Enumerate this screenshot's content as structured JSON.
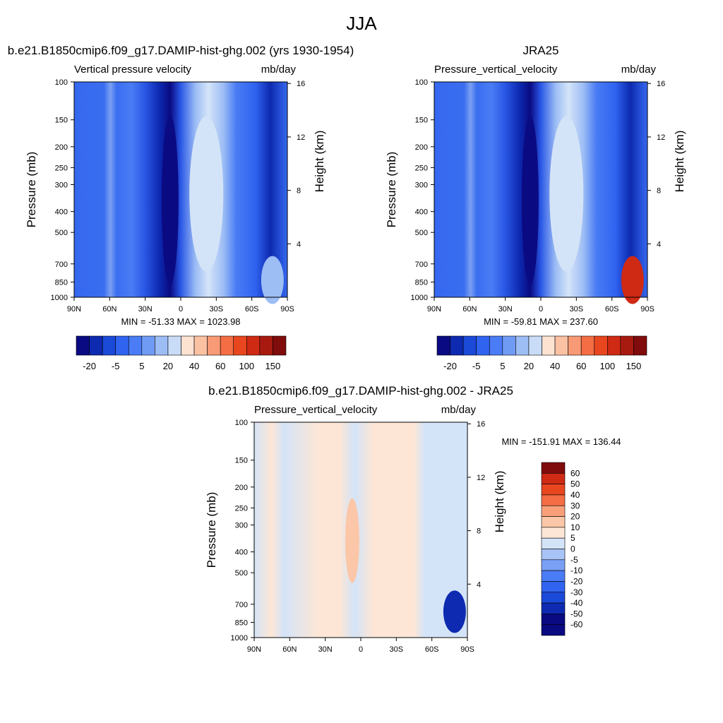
{
  "title": "JJA",
  "chart_data": [
    {
      "type": "heatmap",
      "title": "b.e21.B1850cmip6.f09_g17.DAMIP-hist-ghg.002 (yrs 1930-1954)",
      "field_label": "Vertical pressure velocity",
      "units": "mb/day",
      "ylabel": "Pressure (mb)",
      "y2label": "Height (km)",
      "x_ticks": [
        "90N",
        "60N",
        "30N",
        "0",
        "30S",
        "60S",
        "90S"
      ],
      "y_ticks": [
        100,
        150,
        200,
        250,
        300,
        400,
        500,
        700,
        850,
        1000
      ],
      "y2_ticks": [
        16,
        12,
        8,
        4
      ],
      "ylim": [
        1000,
        100
      ],
      "y_scale": "log",
      "min_max_text": "MIN = -51.33  MAX = 1023.98",
      "colorbar_labels": [
        "-20",
        "-5",
        "5",
        "20",
        "40",
        "60",
        "100",
        "150"
      ],
      "colorbar_orientation": "horizontal"
    },
    {
      "type": "heatmap",
      "title": "JRA25",
      "field_label": "Pressure_vertical_velocity",
      "units": "mb/day",
      "ylabel": "Pressure (mb)",
      "y2label": "Height (km)",
      "x_ticks": [
        "90N",
        "60N",
        "30N",
        "0",
        "30S",
        "60S",
        "90S"
      ],
      "y_ticks": [
        100,
        150,
        200,
        250,
        300,
        400,
        500,
        700,
        850,
        1000
      ],
      "y2_ticks": [
        16,
        12,
        8,
        4
      ],
      "ylim": [
        1000,
        100
      ],
      "y_scale": "log",
      "min_max_text": "MIN = -59.81  MAX = 237.60",
      "colorbar_labels": [
        "-20",
        "-5",
        "5",
        "20",
        "40",
        "60",
        "100",
        "150"
      ],
      "colorbar_orientation": "horizontal"
    },
    {
      "type": "heatmap",
      "title": "b.e21.B1850cmip6.f09_g17.DAMIP-hist-ghg.002 - JRA25",
      "field_label": "Pressure_vertical_velocity",
      "units": "mb/day",
      "ylabel": "Pressure (mb)",
      "y2label": "Height (km)",
      "x_ticks": [
        "90N",
        "60N",
        "30N",
        "0",
        "30S",
        "60S",
        "90S"
      ],
      "y_ticks": [
        100,
        150,
        200,
        250,
        300,
        400,
        500,
        700,
        850,
        1000
      ],
      "y2_ticks": [
        16,
        12,
        8,
        4
      ],
      "ylim": [
        1000,
        100
      ],
      "y_scale": "log",
      "min_max_text": "MIN = -151.91  MAX = 136.44",
      "colorbar_labels": [
        "60",
        "50",
        "40",
        "30",
        "20",
        "10",
        "5",
        "0",
        "-5",
        "-10",
        "-20",
        "-30",
        "-40",
        "-50",
        "-60"
      ],
      "colorbar_orientation": "vertical"
    }
  ],
  "colors": {
    "abs_scale": [
      "#0a0a82",
      "#0d2ab0",
      "#1b49d8",
      "#2f63f0",
      "#4a7cf5",
      "#6f9bf5",
      "#9dbdf5",
      "#c8dcf8",
      "#fde2d2",
      "#fbc1a3",
      "#f89a75",
      "#f46d45",
      "#e8461f",
      "#cf2a14",
      "#a81a10",
      "#800c0c"
    ],
    "diff_scale": [
      "#0a0a82",
      "#0d2ab0",
      "#1b49d8",
      "#2f63f0",
      "#4a7cf5",
      "#7aa0f5",
      "#a8c3f5",
      "#d4e4f8",
      "#fde6d6",
      "#fbc7a8",
      "#f89f7a",
      "#f46d45",
      "#e8461f",
      "#cf2a14",
      "#800c0c"
    ]
  }
}
